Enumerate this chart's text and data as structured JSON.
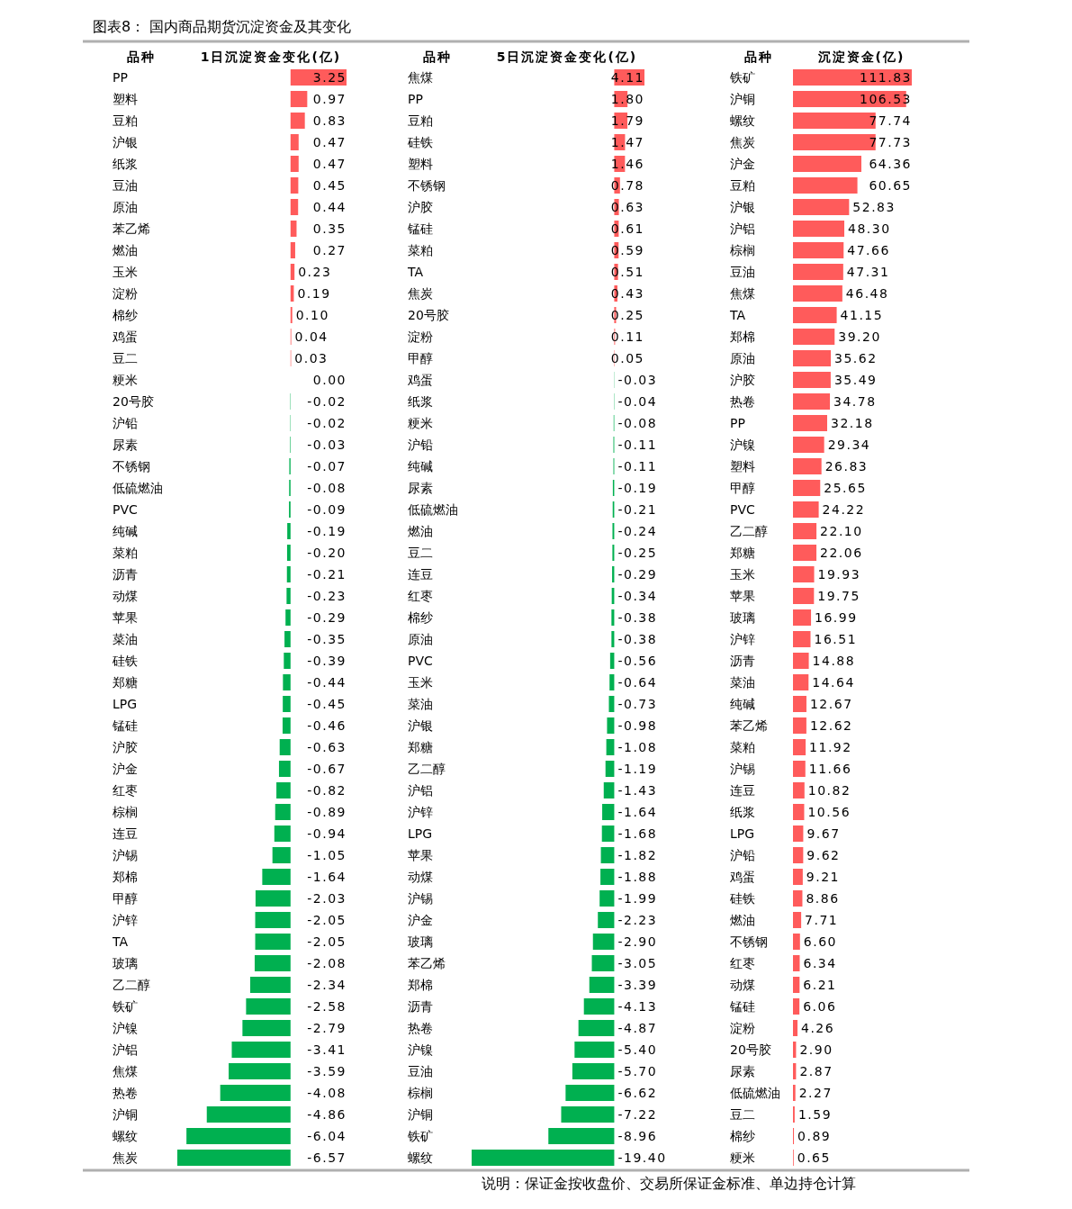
{
  "chart_data": [
    {
      "type": "other",
      "title": "图表8： 国内商品期货沉淀资金及其变化",
      "annotations": [
        "说明：保证金按收盘价、交易所保证金标准、单边持仓计算"
      ]
    },
    {
      "type": "bar",
      "orientation": "horizontal",
      "title": "1日沉淀资金变化(亿)",
      "ylabel": "品种",
      "value_labels": [
        "3.25",
        "0.97",
        "0.83",
        "0.47",
        "0.47",
        "0.45",
        "0.44",
        "0.35",
        "0.27",
        "0.23",
        "0.19",
        "0.10",
        "0.04",
        "0.03",
        "0.00",
        "-0.02",
        "-0.02",
        "-0.03",
        "-0.07",
        "-0.08",
        "-0.09",
        "-0.19",
        "-0.20",
        "-0.21",
        "-0.23",
        "-0.29",
        "-0.35",
        "-0.39",
        "-0.44",
        "-0.45",
        "-0.46",
        "-0.63",
        "-0.67",
        "-0.82",
        "-0.89",
        "-0.94",
        "-1.05",
        "-1.64",
        "-2.03",
        "-2.05",
        "-2.05",
        "-2.08",
        "-2.34",
        "-2.58",
        "-2.79",
        "-3.41",
        "-3.59",
        "-4.08",
        "-4.86",
        "-6.04",
        "-6.57"
      ],
      "categories": [
        "PP",
        "塑料",
        "豆粕",
        "沪银",
        "纸浆",
        "豆油",
        "原油",
        "苯乙烯",
        "燃油",
        "玉米",
        "淀粉",
        "棉纱",
        "鸡蛋",
        "豆二",
        "粳米",
        "20号胶",
        "沪铅",
        "尿素",
        "不锈钢",
        "低硫燃油",
        "PVC",
        "纯碱",
        "菜粕",
        "沥青",
        "动煤",
        "苹果",
        "菜油",
        "硅铁",
        "郑糖",
        "LPG",
        "锰硅",
        "沪胶",
        "沪金",
        "红枣",
        "棕榈",
        "连豆",
        "沪锡",
        "郑棉",
        "甲醇",
        "沪锌",
        "TA",
        "玻璃",
        "乙二醇",
        "铁矿",
        "沪镍",
        "沪铝",
        "焦煤",
        "热卷",
        "沪铜",
        "螺纹",
        "焦炭"
      ],
      "values": [
        3.25,
        0.97,
        0.83,
        0.47,
        0.47,
        0.45,
        0.44,
        0.35,
        0.27,
        0.23,
        0.19,
        0.1,
        0.04,
        0.03,
        0.0,
        -0.02,
        -0.02,
        -0.03,
        -0.07,
        -0.08,
        -0.09,
        -0.19,
        -0.2,
        -0.21,
        -0.23,
        -0.29,
        -0.35,
        -0.39,
        -0.44,
        -0.45,
        -0.46,
        -0.63,
        -0.67,
        -0.82,
        -0.89,
        -0.94,
        -1.05,
        -1.64,
        -2.03,
        -2.05,
        -2.05,
        -2.08,
        -2.34,
        -2.58,
        -2.79,
        -3.41,
        -3.59,
        -4.08,
        -4.86,
        -6.04,
        -6.57
      ],
      "colors": [
        "#ff5b5b",
        "#ff5b5b",
        "#ff5b5b",
        "#ff5b5b",
        "#ff5b5b",
        "#ff5b5b",
        "#ff5b5b",
        "#ff5b5b",
        "#ff5b5b",
        "#ff5b5b",
        "#ff5b5b",
        "#ff5b5b",
        "#ff5b5b",
        "#ff5b5b",
        "#ff5b5b",
        "#00b050",
        "#00b050",
        "#00b050",
        "#00b050",
        "#00b050",
        "#00b050",
        "#00b050",
        "#00b050",
        "#00b050",
        "#00b050",
        "#00b050",
        "#00b050",
        "#00b050",
        "#00b050",
        "#00b050",
        "#00b050",
        "#00b050",
        "#00b050",
        "#00b050",
        "#00b050",
        "#00b050",
        "#00b050",
        "#00b050",
        "#00b050",
        "#00b050",
        "#00b050",
        "#00b050",
        "#00b050",
        "#00b050",
        "#00b050",
        "#00b050",
        "#00b050",
        "#00b050",
        "#00b050",
        "#00b050",
        "#00b050"
      ]
    },
    {
      "type": "bar",
      "orientation": "horizontal",
      "title": "5日沉淀资金变化(亿)",
      "ylabel": "品种",
      "value_labels": [
        "4.11",
        "1.80",
        "1.79",
        "1.47",
        "1.46",
        "0.78",
        "0.63",
        "0.61",
        "0.59",
        "0.51",
        "0.43",
        "0.25",
        "0.11",
        "0.05",
        "-0.03",
        "-0.04",
        "-0.08",
        "-0.11",
        "-0.11",
        "-0.19",
        "-0.21",
        "-0.24",
        "-0.25",
        "-0.29",
        "-0.34",
        "-0.38",
        "-0.38",
        "-0.56",
        "-0.64",
        "-0.73",
        "-0.98",
        "-1.08",
        "-1.19",
        "-1.43",
        "-1.64",
        "-1.68",
        "-1.82",
        "-1.88",
        "-1.99",
        "-2.23",
        "-2.90",
        "-3.05",
        "-3.39",
        "-4.13",
        "-4.87",
        "-5.40",
        "-5.70",
        "-6.62",
        "-7.22",
        "-8.96",
        "-19.40"
      ],
      "categories": [
        "焦煤",
        "PP",
        "豆粕",
        "硅铁",
        "塑料",
        "不锈钢",
        "沪胶",
        "锰硅",
        "菜粕",
        "TA",
        "焦炭",
        "20号胶",
        "淀粉",
        "甲醇",
        "鸡蛋",
        "纸浆",
        "粳米",
        "沪铅",
        "纯碱",
        "尿素",
        "低硫燃油",
        "燃油",
        "豆二",
        "连豆",
        "红枣",
        "棉纱",
        "原油",
        "PVC",
        "玉米",
        "菜油",
        "沪银",
        "郑糖",
        "乙二醇",
        "沪铝",
        "沪锌",
        "LPG",
        "苹果",
        "动煤",
        "沪锡",
        "沪金",
        "玻璃",
        "苯乙烯",
        "郑棉",
        "沥青",
        "热卷",
        "沪镍",
        "豆油",
        "棕榈",
        "沪铜",
        "铁矿",
        "螺纹"
      ],
      "values": [
        4.11,
        1.8,
        1.79,
        1.47,
        1.46,
        0.78,
        0.63,
        0.61,
        0.59,
        0.51,
        0.43,
        0.25,
        0.11,
        0.05,
        -0.03,
        -0.04,
        -0.08,
        -0.11,
        -0.11,
        -0.19,
        -0.21,
        -0.24,
        -0.25,
        -0.29,
        -0.34,
        -0.38,
        -0.38,
        -0.56,
        -0.64,
        -0.73,
        -0.98,
        -1.08,
        -1.19,
        -1.43,
        -1.64,
        -1.68,
        -1.82,
        -1.88,
        -1.99,
        -2.23,
        -2.9,
        -3.05,
        -3.39,
        -4.13,
        -4.87,
        -5.4,
        -5.7,
        -6.62,
        -7.22,
        -8.96,
        -19.4
      ],
      "colors": [
        "#ff5b5b",
        "#ff5b5b",
        "#ff5b5b",
        "#ff5b5b",
        "#ff5b5b",
        "#ff5b5b",
        "#ff5b5b",
        "#ff5b5b",
        "#ff5b5b",
        "#ff5b5b",
        "#ff5b5b",
        "#ff5b5b",
        "#ff5b5b",
        "#ff5b5b",
        "#00b050",
        "#00b050",
        "#00b050",
        "#00b050",
        "#00b050",
        "#00b050",
        "#00b050",
        "#00b050",
        "#00b050",
        "#00b050",
        "#00b050",
        "#00b050",
        "#00b050",
        "#00b050",
        "#00b050",
        "#00b050",
        "#00b050",
        "#00b050",
        "#00b050",
        "#00b050",
        "#00b050",
        "#00b050",
        "#00b050",
        "#00b050",
        "#00b050",
        "#00b050",
        "#00b050",
        "#00b050",
        "#00b050",
        "#00b050",
        "#00b050",
        "#00b050",
        "#00b050",
        "#00b050",
        "#00b050",
        "#00b050",
        "#00b050"
      ]
    },
    {
      "type": "bar",
      "orientation": "horizontal",
      "title": "沉淀资金(亿)",
      "ylabel": "品种",
      "value_labels": [
        "111.83",
        "106.53",
        "77.74",
        "77.73",
        "64.36",
        "60.65",
        "52.83",
        "48.30",
        "47.66",
        "47.31",
        "46.48",
        "41.15",
        "39.20",
        "35.62",
        "35.49",
        "34.78",
        "32.18",
        "29.34",
        "26.83",
        "25.65",
        "24.22",
        "22.10",
        "22.06",
        "19.93",
        "19.75",
        "16.99",
        "16.51",
        "14.88",
        "14.64",
        "12.67",
        "12.62",
        "11.92",
        "11.66",
        "10.82",
        "10.56",
        "9.67",
        "9.62",
        "9.21",
        "8.86",
        "7.71",
        "6.60",
        "6.34",
        "6.21",
        "6.06",
        "4.26",
        "2.90",
        "2.87",
        "2.27",
        "1.59",
        "0.89",
        "0.65"
      ],
      "categories": [
        "铁矿",
        "沪铜",
        "螺纹",
        "焦炭",
        "沪金",
        "豆粕",
        "沪银",
        "沪铝",
        "棕榈",
        "豆油",
        "焦煤",
        "TA",
        "郑棉",
        "原油",
        "沪胶",
        "热卷",
        "PP",
        "沪镍",
        "塑料",
        "甲醇",
        "PVC",
        "乙二醇",
        "郑糖",
        "玉米",
        "苹果",
        "玻璃",
        "沪锌",
        "沥青",
        "菜油",
        "纯碱",
        "苯乙烯",
        "菜粕",
        "沪锡",
        "连豆",
        "纸浆",
        "LPG",
        "沪铅",
        "鸡蛋",
        "硅铁",
        "燃油",
        "不锈钢",
        "红枣",
        "动煤",
        "锰硅",
        "淀粉",
        "20号胶",
        "尿素",
        "低硫燃油",
        "豆二",
        "棉纱",
        "粳米"
      ],
      "values": [
        111.83,
        106.53,
        77.74,
        77.73,
        64.36,
        60.65,
        52.83,
        48.3,
        47.66,
        47.31,
        46.48,
        41.15,
        39.2,
        35.62,
        35.49,
        34.78,
        32.18,
        29.34,
        26.83,
        25.65,
        24.22,
        22.1,
        22.06,
        19.93,
        19.75,
        16.99,
        16.51,
        14.88,
        14.64,
        12.67,
        12.62,
        11.92,
        11.66,
        10.82,
        10.56,
        9.67,
        9.62,
        9.21,
        8.86,
        7.71,
        6.6,
        6.34,
        6.21,
        6.06,
        4.26,
        2.9,
        2.87,
        2.27,
        1.59,
        0.89,
        0.65
      ],
      "colors": [
        "#ff5b5b",
        "#ff5b5b",
        "#ff5b5b",
        "#ff5b5b",
        "#ff5b5b",
        "#ff5b5b",
        "#ff5b5b",
        "#ff5b5b",
        "#ff5b5b",
        "#ff5b5b",
        "#ff5b5b",
        "#ff5b5b",
        "#ff5b5b",
        "#ff5b5b",
        "#ff5b5b",
        "#ff5b5b",
        "#ff5b5b",
        "#ff5b5b",
        "#ff5b5b",
        "#ff5b5b",
        "#ff5b5b",
        "#ff5b5b",
        "#ff5b5b",
        "#ff5b5b",
        "#ff5b5b",
        "#ff5b5b",
        "#ff5b5b",
        "#ff5b5b",
        "#ff5b5b",
        "#ff5b5b",
        "#ff5b5b",
        "#ff5b5b",
        "#ff5b5b",
        "#ff5b5b",
        "#ff5b5b",
        "#ff5b5b",
        "#ff5b5b",
        "#ff5b5b",
        "#ff5b5b",
        "#ff5b5b",
        "#ff5b5b",
        "#ff5b5b",
        "#ff5b5b",
        "#ff5b5b",
        "#ff5b5b",
        "#ff5b5b",
        "#ff5b5b",
        "#ff5b5b",
        "#ff5b5b",
        "#ff5b5b",
        "#ff5b5b"
      ]
    }
  ]
}
